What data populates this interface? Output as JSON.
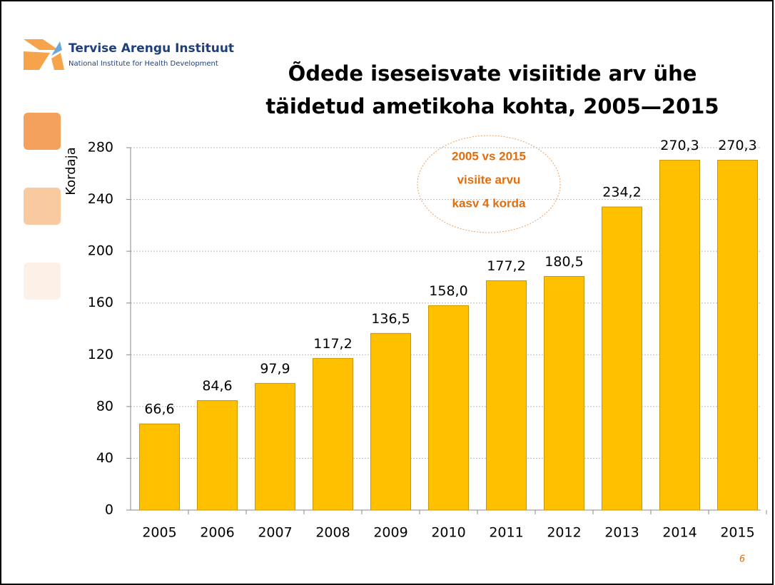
{
  "logo": {
    "name": "Tervise Arengu Instituut",
    "subtitle": "National Institute for Health Development"
  },
  "page_number": "6",
  "chart_data": {
    "type": "bar",
    "title": [
      "Õdede iseseisvate visiitide arv ühe",
      "täidetud ametikoha kohta, 2005—2015"
    ],
    "y_label": "Kordaja",
    "annotation": [
      "2005 vs 2015",
      "visiite arvu",
      "kasv 4 korda"
    ],
    "categories": [
      "2005",
      "2006",
      "2007",
      "2008",
      "2009",
      "2010",
      "2011",
      "2012",
      "2013",
      "2014",
      "2015"
    ],
    "values": [
      66.6,
      84.6,
      97.9,
      117.2,
      136.5,
      158.0,
      177.2,
      180.5,
      234.2,
      270.3,
      270.3
    ],
    "value_labels": [
      "66,6",
      "84,6",
      "97,9",
      "117,2",
      "136,5",
      "158,0",
      "177,2",
      "180,5",
      "234,2",
      "270,3",
      "270,3"
    ],
    "color": "#FFC000",
    "ylim": [
      0,
      280
    ],
    "yticks": [
      0,
      40,
      80,
      120,
      160,
      200,
      240,
      280
    ],
    "grid": true
  }
}
